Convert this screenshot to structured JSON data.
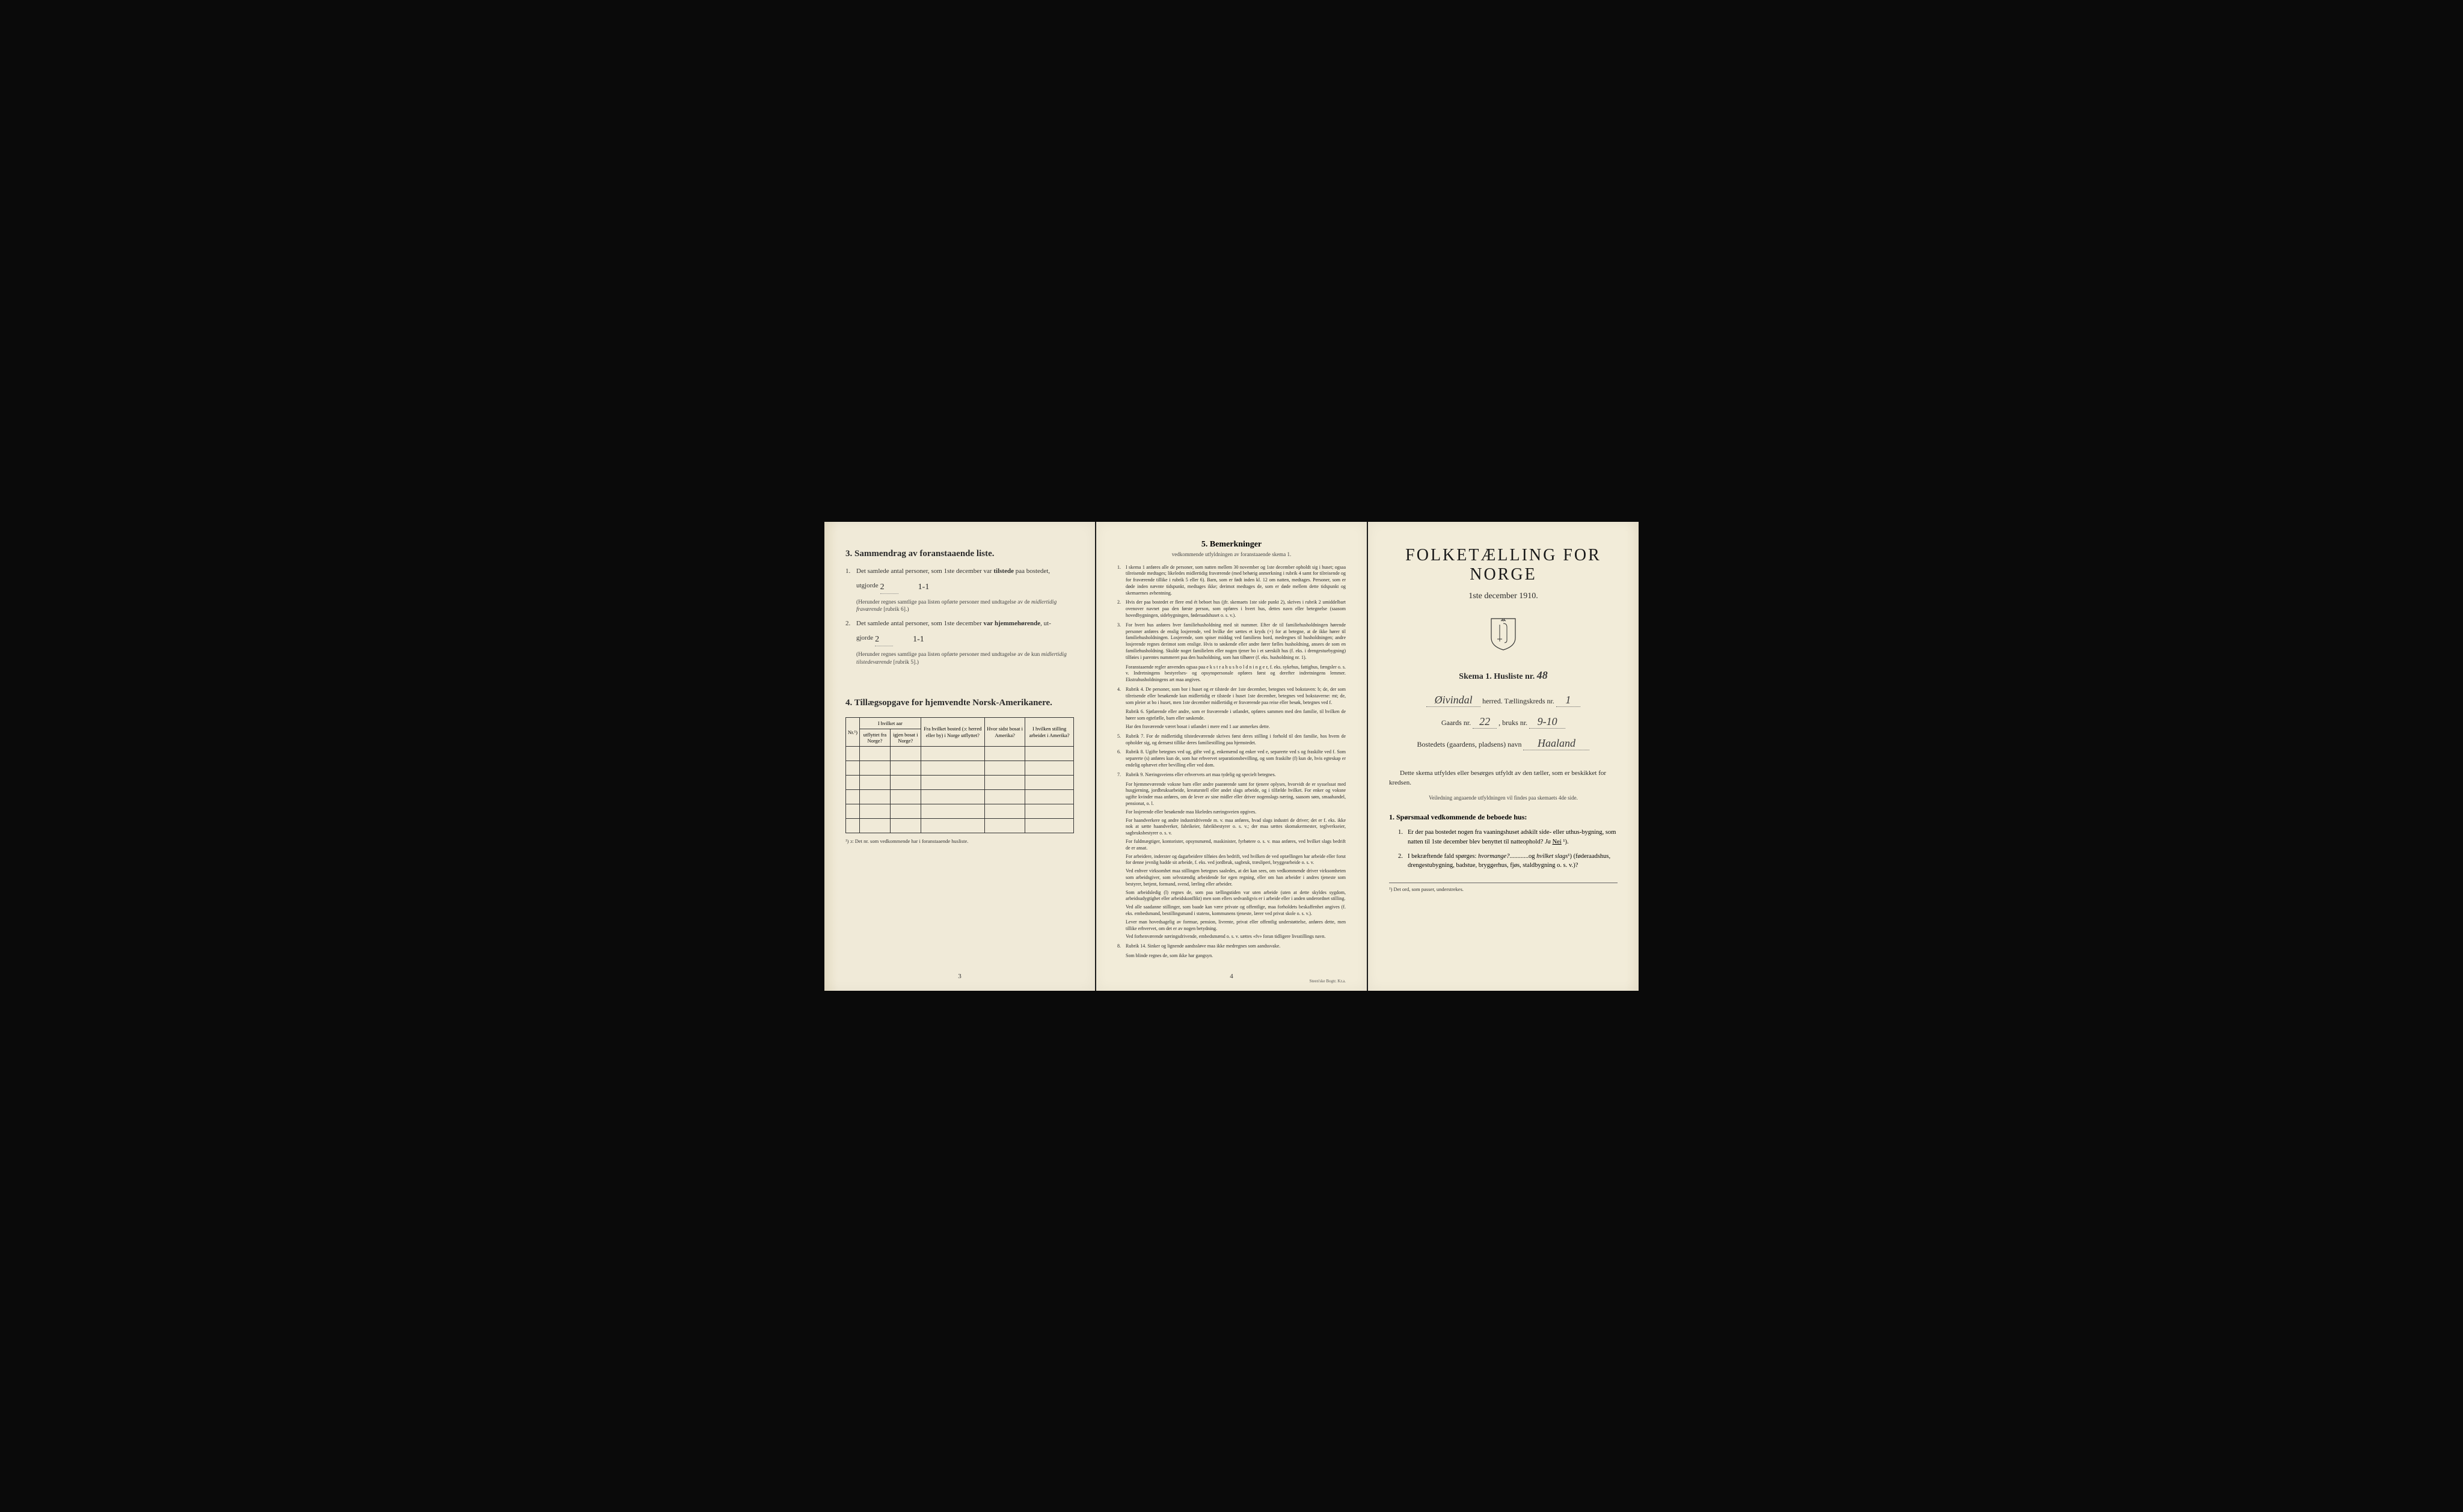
{
  "page1": {
    "section3": {
      "heading": "3.  Sammendrag av foranstaaende liste.",
      "items": [
        {
          "num": "1.",
          "text_a": "Det samlede antal personer, som 1ste december var ",
          "text_b": "tilstede",
          "text_c": " paa bostedet,",
          "line2_a": "utgjorde",
          "fill_val": "2",
          "handwritten": "1-1",
          "paren": "(Herunder regnes samtlige paa listen opførte personer med undtagelse av de midlertidig fraværende [rubrik 6].)"
        },
        {
          "num": "2.",
          "text_a": "Det samlede antal personer, som 1ste december ",
          "text_b": "var hjemmehørende",
          "text_c": ", ut-",
          "line2_a": "gjorde",
          "fill_val": "2",
          "handwritten": "1-1",
          "paren": "(Herunder regnes samtlige paa listen opførte personer med undtagelse av de kun midlertidig tilstedeværende [rubrik 5].)"
        }
      ]
    },
    "section4": {
      "heading": "4.  Tillægsopgave for hjemvendte Norsk-Amerikanere.",
      "columns": [
        "Nr.¹)",
        "I hvilket aar utflyttet fra Norge?",
        "igjen bosat i Norge?",
        "Fra hvilket bosted (ɔ: herred eller by) i Norge utflyttet?",
        "Hvor sidst bosat i Amerika?",
        "I hvilken stilling arbeidet i Amerika?"
      ],
      "footnote": "¹) ɔ: Det nr. som vedkommende har i foranstaaende husliste."
    },
    "page_num": "3"
  },
  "page2": {
    "heading": "5.  Bemerkninger",
    "subheading": "vedkommende utfyldningen av foranstaaende skema 1.",
    "items": [
      {
        "num": "1.",
        "text": "I skema 1 anføres alle de personer, som natten mellem 30 november og 1ste december opholdt sig i huset; ogsaa tilreisende medtages; likeledes midlertidig fraværende (med behørig anmerkning i rubrik 4 samt for tilreisende og for fraværende tillike i rubrik 5 eller 6). Barn, som er født inden kl. 12 om natten, medtages. Personer, som er døde inden nævnte tidspunkt, medtages ikke; derimot medtages de, som er døde mellem dette tidspunkt og skemaernes avhentning."
      },
      {
        "num": "2.",
        "text": "Hvis der paa bostedet er flere end ét beboet hus (jfr. skemaets 1ste side punkt 2), skrives i rubrik 2 umiddelbart ovenover navnet paa den første person, som opføres i hvert hus, dettes navn eller betegnelse (saasom hovedbygningen, sidebygningen, føderaadshuset o. s. v.)."
      },
      {
        "num": "3.",
        "text": "For hvert hus anføres hver familiehusholdning med sit nummer. Efter de til familiehusholdningen hørende personer anføres de enslig losjerende, ved hvilke der sættes et kryds (×) for at betegne, at de ikke hører til familiehusholdningen. Losjerende, som spiser middag ved familiens bord, medregnes til husholdningen; andre losjerende regnes derimot som enslige. Hvis to søskende eller andre fører fælles husholdning, ansees de som en familiehusholdning. Skulde noget familielem eller nogen tjener bo i et særskilt hus (f. eks. i drengestuebygning) tilføies i parentes nummeret paa den husholdning, som han tilhører (f. eks. husholdning nr. 1).",
        "paras": [
          "Foranstaaende regler anvendes ogsaa paa e k s t r a h u s h o l d n i n g e r, f. eks. sykehus, fattighus, fængsler o. s. v. Indretningens bestyrelses- og opsynspersonale opføres først og derefter indretningens lemmer. Ekstrahusholdningens art maa angives."
        ]
      },
      {
        "num": "4.",
        "text": "Rubrik 4. De personer, som bor i huset og er tilstede der 1ste december, betegnes ved bokstaven: b; de, der som tilreisende eller besøkende kun midlertidig er tilstede i huset 1ste december, betegnes ved bokstaverne: mt; de, som pleier at bo i huset, men 1ste december midlertidig er fraværende paa reise eller besøk, betegnes ved f.",
        "paras": [
          "Rubrik 6. Sjøfarende eller andre, som er fraværende i utlandet, opføres sammen med den familie, til hvilken de hører som egtefælle, barn eller søskende.",
          "Har den fraværende været bosat i utlandet i mere end 1 aar anmerkes dette."
        ]
      },
      {
        "num": "5.",
        "text": "Rubrik 7. For de midlertidig tilstedeværende skrives først deres stilling i forhold til den familie, hos hvem de opholder sig, og dernæst tillike deres familiestilling paa hjemstedet."
      },
      {
        "num": "6.",
        "text": "Rubrik 8. Ugifte betegnes ved ug, gifte ved g, enkemænd og enker ved e, separerte ved s og fraskilte ved f. Som separerte (s) anføres kun de, som har erhvervet separationsbevilling, og som fraskilte (f) kun de, hvis egteskap er endelig ophævet efter bevilling eller ved dom."
      },
      {
        "num": "7.",
        "text": "Rubrik 9. Næringsveiens eller erhvervets art maa tydelig og specielt betegnes.",
        "paras": [
          "For hjemmeværende voksne barn eller andre paarørende samt for tjenere oplyses, hvorvidt de er sysselssat med husgjerning, jordbruksarbeide, kreaturstell eller andet slags arbeide, og i tilfælde hvilket. For enker og voksne ugifte kvinder maa anføres, om de lever av sine midler eller driver nogenslags næring, saasom søm, smaahandel, pensionat, o. l.",
          "For losjerende eller besøkende maa likeledes næringsveien opgives.",
          "For haandverkere og andre industridrivende m. v. maa anføres, hvad slags industri de driver; det er f. eks. ikke nok at sætte haandverker, fabrikeier, fabrikbestyrer o. s. v.; der maa sættes skomakermester, teglverkseier, sagbruksbestyrer o. s. v.",
          "For fuldmægtiger, kontorister, opsynsmænd, maskinister, fyrbøtere o. s. v. maa anføres, ved hvilket slags bedrift de er ansat.",
          "For arbeidere, inderster og dagarbeidere tilføies den bedrift, ved hvilken de ved optællingen har arbeide eller forut for denne jevnlig hadde sit arbeide, f. eks. ved jordbruk, sagbruk, træsliperi, bryggearbeide o. s. v.",
          "Ved enhver virksomhet maa stillingen betegnes saaledes, at det kan sees, om vedkommende driver virksomheten som arbeidsgiver, som selvstændig arbeidende for egen regning, eller om han arbeider i andres tjeneste som bestyrer, betjent, formand, svend, lærling eller arbeider.",
          "Som arbeidsledig (l) regnes de, som paa tællingstiden var uten arbeide (uten at dette skyldes sygdom, arbeidsudygtighet eller arbeidskonflikt) men som ellers sedvanligvis er i arbeide eller i anden underordnet stilling.",
          "Ved alle saadanne stillinger, som baade kan være private og offentlige, maa forholdets beskaffenhet angives (f. eks. embedsmand, bestillingsmand i statens, kommunens tjeneste, lærer ved privat skole o. s. v.).",
          "Lever man hovedsagelig av formue, pension, livrente, privat eller offentlig understøttelse, anføres dette, men tillike erhvervet, om det er av nogen betydning.",
          "Ved forhenværende næringsdrivende, embedsmænd o. s. v. sættes «fv» foran tidligere livsstillings navn."
        ]
      },
      {
        "num": "8.",
        "text": "Rubrik 14. Sinker og lignende aandssløve maa ikke medregnes som aandssvake.",
        "paras": [
          "Som blinde regnes de, som ikke har gangsyn."
        ]
      }
    ],
    "page_num": "4",
    "printer": "Steen'ske Bogtr.  Kr.a."
  },
  "page3": {
    "main_title": "FOLKETÆLLING FOR NORGE",
    "main_date": "1ste december 1910.",
    "skema_label": "Skema 1.  Husliste nr.",
    "husliste_nr": "48",
    "herred_hw": "Øivindal",
    "herred_label": "herred.  Tællingskreds nr.",
    "kreds_nr": "1",
    "gaards_label": "Gaards nr.",
    "gaards_nr": "22",
    "bruks_label": ", bruks nr.",
    "bruks_nr": "9-10",
    "bosted_label": "Bostedets (gaardens, pladsens) navn",
    "bosted_navn": "Haaland",
    "instruction1": "Dette skema utfyldes eller besørges utfyldt av den tæller, som er beskikket for kredsen.",
    "instruction2": "Veiledning angaaende utfyldningen vil findes paa skemaets 4de side.",
    "q_heading": "1.  Spørsmaal vedkommende de beboede hus:",
    "questions": [
      {
        "num": "1.",
        "text": "Er der paa bostedet nogen fra vaaningshuset adskilt side- eller uthus-bygning, som natten til 1ste december blev benyttet til natteophold?   Ja   Nei ¹).",
        "answer": "Nei"
      },
      {
        "num": "2.",
        "text": "I bekræftende fald spørges: hvormange?............og hvilket slags¹) (føderaadshus, drengestubygning, badstue, bryggerhus, fjøs, staldbygning o. s. v.)?"
      }
    ],
    "footnote": "¹) Det ord, som passer, understrekes."
  }
}
